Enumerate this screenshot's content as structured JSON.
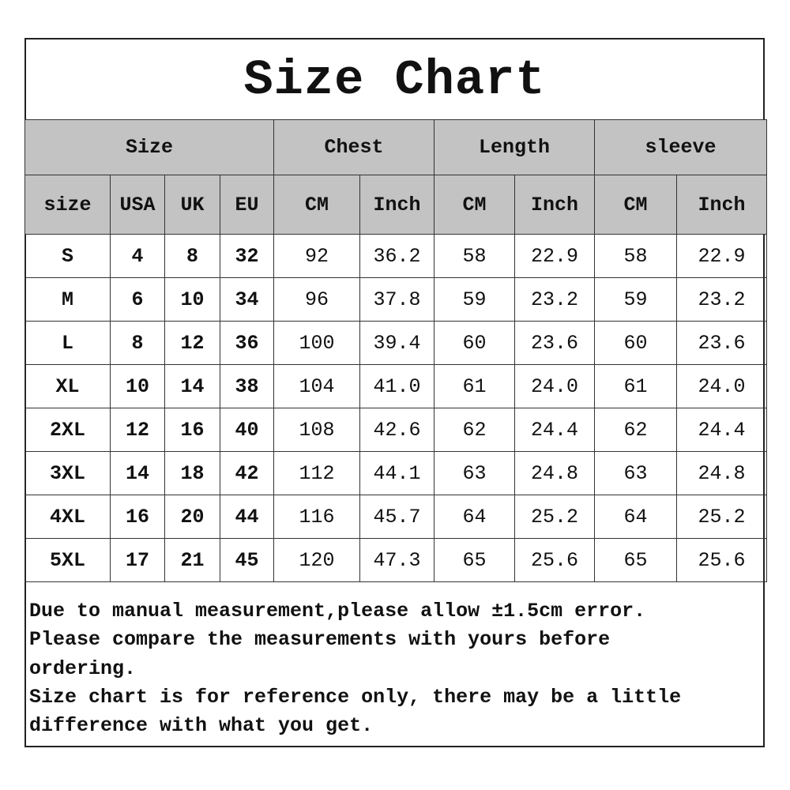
{
  "title": "Size Chart",
  "groups": [
    "Size",
    "Chest",
    "Length",
    "sleeve"
  ],
  "subheaders": [
    "size",
    "USA",
    "UK",
    "EU",
    "CM",
    "Inch",
    "CM",
    "Inch",
    "CM",
    "Inch"
  ],
  "rows": [
    [
      "S",
      "4",
      "8",
      "32",
      "92",
      "36.2",
      "58",
      "22.9",
      "58",
      "22.9"
    ],
    [
      "M",
      "6",
      "10",
      "34",
      "96",
      "37.8",
      "59",
      "23.2",
      "59",
      "23.2"
    ],
    [
      "L",
      "8",
      "12",
      "36",
      "100",
      "39.4",
      "60",
      "23.6",
      "60",
      "23.6"
    ],
    [
      "XL",
      "10",
      "14",
      "38",
      "104",
      "41.0",
      "61",
      "24.0",
      "61",
      "24.0"
    ],
    [
      "2XL",
      "12",
      "16",
      "40",
      "108",
      "42.6",
      "62",
      "24.4",
      "62",
      "24.4"
    ],
    [
      "3XL",
      "14",
      "18",
      "42",
      "112",
      "44.1",
      "63",
      "24.8",
      "63",
      "24.8"
    ],
    [
      "4XL",
      "16",
      "20",
      "44",
      "116",
      "45.7",
      "64",
      "25.2",
      "64",
      "25.2"
    ],
    [
      "5XL",
      "17",
      "21",
      "45",
      "120",
      "47.3",
      "65",
      "25.6",
      "65",
      "25.6"
    ]
  ],
  "notes": [
    "Due to manual measurement,please allow ±1.5cm error.",
    "Please compare the measurements with yours before",
    "ordering.",
    "Size chart is for reference only, there may be a little",
    "difference with what you get."
  ],
  "colors": {
    "header_bg": "#c3c3c3",
    "border": "#333333"
  }
}
